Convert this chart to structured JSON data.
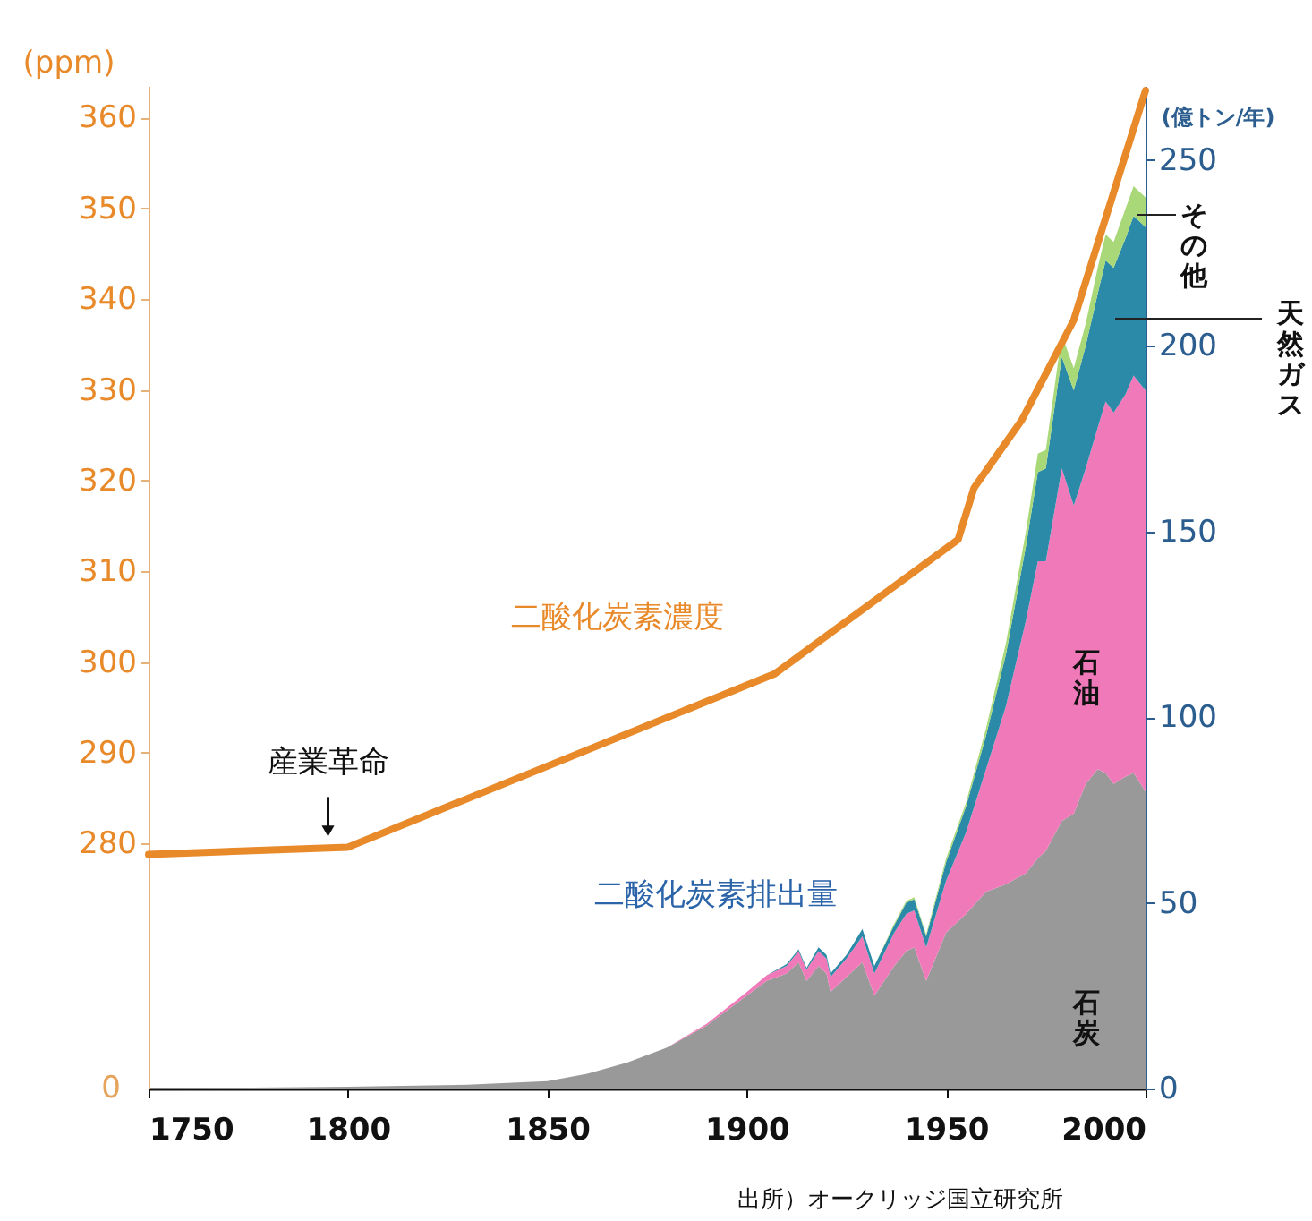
{
  "chart_data": {
    "type": "area",
    "stacked": true,
    "ylabel": "(ppm)",
    "y2label": "(億トン/年)",
    "x": [
      1750,
      1800,
      1830,
      1850,
      1860,
      1870,
      1880,
      1890,
      1900,
      1905,
      1910,
      1913,
      1915,
      1918,
      1920,
      1921,
      1925,
      1929,
      1932,
      1937,
      1940,
      1942,
      1945,
      1950,
      1955,
      1960,
      1965,
      1970,
      1973,
      1975,
      1979,
      1982,
      1985,
      1988,
      1990,
      1992,
      1995,
      1997,
      2000
    ],
    "xlim": [
      1750,
      2000
    ],
    "xticks": [
      1750,
      1800,
      1850,
      1900,
      1950,
      2000
    ],
    "ylim": [
      253,
      363.5
    ],
    "yticks": [
      280,
      290,
      300,
      310,
      320,
      330,
      340,
      350,
      360
    ],
    "y2lim": [
      0,
      270
    ],
    "y2ticks": [
      0,
      50,
      100,
      150,
      200,
      250
    ],
    "series": [
      {
        "name": "石炭",
        "color": "#999999",
        "axis": "y2",
        "values": [
          0,
          0.5,
          1,
          2,
          4,
          7,
          11,
          17,
          25,
          29,
          31,
          34,
          29,
          33,
          31,
          26,
          30,
          34,
          25,
          33,
          37,
          38,
          29,
          42,
          47,
          53,
          55,
          58,
          62,
          64,
          72,
          74,
          82,
          86,
          85,
          82,
          84,
          85,
          80
        ]
      },
      {
        "name": "石油",
        "color": "#f07ab9",
        "axis": "y2",
        "values": [
          0,
          0,
          0,
          0,
          0,
          0,
          0,
          0.5,
          1,
          1.5,
          2,
          3,
          3,
          4,
          4,
          4,
          5,
          7,
          6,
          9,
          10,
          10,
          9,
          14,
          22,
          33,
          48,
          68,
          80,
          78,
          95,
          83,
          85,
          92,
          100,
          100,
          103,
          107,
          108
        ]
      },
      {
        "name": "天然ガス",
        "color": "#2a8aa8",
        "axis": "y2",
        "values": [
          0,
          0,
          0,
          0,
          0,
          0,
          0,
          0,
          0,
          0,
          0.5,
          0.5,
          0.5,
          1,
          1,
          1,
          1,
          2,
          2,
          2,
          3,
          3,
          3,
          5,
          7,
          9,
          14,
          20,
          24,
          25,
          30,
          31,
          33,
          36,
          38,
          39,
          42,
          43,
          44
        ]
      },
      {
        "name": "その他",
        "color": "#a8d878",
        "axis": "y2",
        "values": [
          0,
          0,
          0,
          0,
          0,
          0,
          0,
          0,
          0,
          0,
          0,
          0,
          0,
          0,
          0,
          0,
          0,
          0,
          0,
          0.5,
          0.5,
          0.5,
          0.5,
          1,
          1,
          2,
          3,
          4,
          5,
          5,
          6,
          6,
          6,
          7,
          7,
          7,
          8,
          8,
          8
        ]
      },
      {
        "name": "二酸化炭素濃度",
        "type": "line",
        "color": "#e8892a",
        "x": [
          1750,
          1800,
          1907,
          1953,
          1957,
          1969,
          1982,
          2000
        ],
        "values": [
          278.8,
          279.6,
          298.7,
          313.5,
          319.2,
          326.7,
          337.7,
          363
        ]
      }
    ],
    "annotations": [
      {
        "text": "産業革命",
        "x": 1795,
        "y": 280
      },
      "二酸化炭素排出量",
      "0",
      "出所）オークリッジ国立研究所"
    ]
  }
}
